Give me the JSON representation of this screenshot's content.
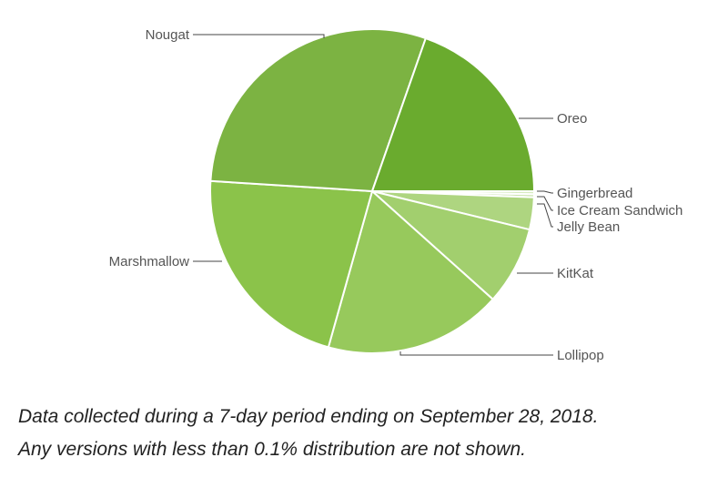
{
  "chart_data": {
    "type": "pie",
    "slices": [
      {
        "label": "Gingerbread",
        "value": 0.3,
        "color": "#d6ebbf"
      },
      {
        "label": "Ice Cream Sandwich",
        "value": 0.3,
        "color": "#c9e3ab"
      },
      {
        "label": "Jelly Bean",
        "value": 3.2,
        "color": "#aed580"
      },
      {
        "label": "KitKat",
        "value": 7.8,
        "color": "#a2cf6e"
      },
      {
        "label": "Lollipop",
        "value": 17.7,
        "color": "#97c95c"
      },
      {
        "label": "Marshmallow",
        "value": 21.6,
        "color": "#8bc34a"
      },
      {
        "label": "Nougat",
        "value": 29.3,
        "color": "#7cb342"
      },
      {
        "label": "Oreo",
        "value": 19.6,
        "color": "#6aab2e"
      }
    ],
    "title": "",
    "legend": "none"
  },
  "caption": {
    "line1": "Data collected during a 7-day period ending on September 28, 2018.",
    "line2": "Any versions with less than 0.1% distribution are not shown."
  }
}
